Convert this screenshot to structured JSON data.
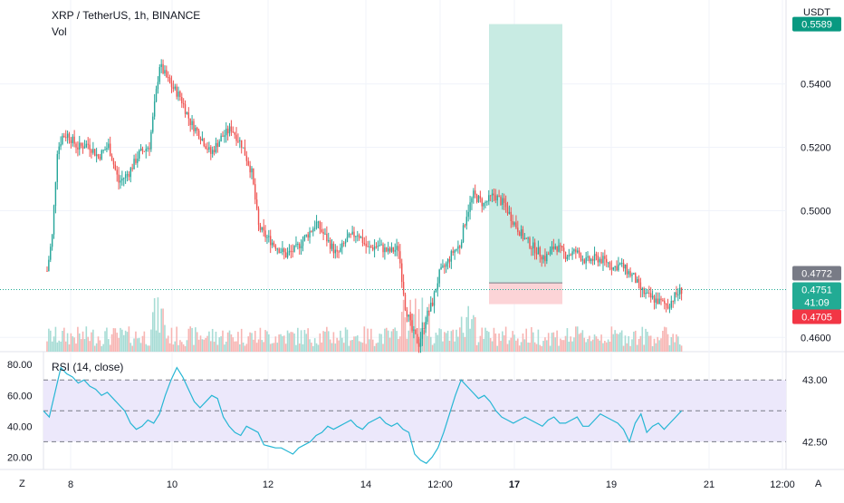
{
  "header": {
    "symbol_line": "XRP / TetherUS, 1h, BINANCE",
    "vol_label": "Vol",
    "currency": "USDT"
  },
  "rsi_label": "RSI (14, close)",
  "buttons": {
    "zoom": "Z",
    "auto": "A"
  },
  "colors": {
    "up": "#26a69a",
    "down": "#ef5350",
    "rsi": "#26b6d4",
    "profit_zone": "#c8ebe3",
    "loss_zone": "#fcd4d7",
    "rsi_band": "#ece8fb"
  },
  "chart_data": [
    {
      "type": "candlestick",
      "title": "XRP / TetherUS, 1h, BINANCE",
      "ylabel": "USDT",
      "y_ticks": [
        "0.5400",
        "0.5200",
        "0.5000",
        "0.4600"
      ],
      "x_ticks": [
        "8",
        "10",
        "12",
        "14",
        "12:00",
        "17",
        "19",
        "21",
        "12:00"
      ],
      "ylim": [
        0.4555,
        0.5665
      ],
      "price_labels": [
        {
          "value": 0.5589,
          "text": "0.5589",
          "color": "#089981"
        },
        {
          "value": 0.4772,
          "text": "0.4772",
          "color": "#787b86"
        },
        {
          "value": 0.4751,
          "text": "0.4751",
          "sub": "41:09",
          "color": "#22ab94"
        },
        {
          "value": 0.4705,
          "text": "0.4705",
          "color": "#f23645"
        }
      ],
      "long_position": {
        "entry": 0.4772,
        "target": 0.5589,
        "stop": 0.4705
      },
      "current_price": 0.4751,
      "close_path": [
        [
          0,
          0.481
        ],
        [
          3,
          0.492
        ],
        [
          6,
          0.519
        ],
        [
          9,
          0.5235
        ],
        [
          12,
          0.524
        ],
        [
          18,
          0.52
        ],
        [
          24,
          0.521
        ],
        [
          30,
          0.517
        ],
        [
          36,
          0.5205
        ],
        [
          42,
          0.509
        ],
        [
          48,
          0.512
        ],
        [
          54,
          0.518
        ],
        [
          60,
          0.5205
        ],
        [
          66,
          0.546
        ],
        [
          72,
          0.54
        ],
        [
          78,
          0.536
        ],
        [
          84,
          0.528
        ],
        [
          90,
          0.5235
        ],
        [
          96,
          0.518
        ],
        [
          102,
          0.523
        ],
        [
          108,
          0.526
        ],
        [
          114,
          0.521
        ],
        [
          120,
          0.512
        ],
        [
          124,
          0.495
        ],
        [
          128,
          0.492
        ],
        [
          134,
          0.489
        ],
        [
          140,
          0.486
        ],
        [
          146,
          0.488
        ],
        [
          152,
          0.492
        ],
        [
          158,
          0.496
        ],
        [
          164,
          0.491
        ],
        [
          170,
          0.486
        ],
        [
          176,
          0.491
        ],
        [
          182,
          0.493
        ],
        [
          188,
          0.488
        ],
        [
          194,
          0.489
        ],
        [
          200,
          0.487
        ],
        [
          206,
          0.488
        ],
        [
          210,
          0.47
        ],
        [
          214,
          0.462
        ],
        [
          218,
          0.458
        ],
        [
          222,
          0.466
        ],
        [
          226,
          0.471
        ],
        [
          230,
          0.48
        ],
        [
          234,
          0.483
        ],
        [
          238,
          0.487
        ],
        [
          242,
          0.489
        ],
        [
          246,
          0.499
        ],
        [
          250,
          0.505
        ],
        [
          256,
          0.502
        ],
        [
          262,
          0.505
        ],
        [
          268,
          0.502
        ],
        [
          274,
          0.496
        ],
        [
          280,
          0.491
        ],
        [
          286,
          0.488
        ],
        [
          292,
          0.485
        ],
        [
          298,
          0.489
        ],
        [
          304,
          0.486
        ],
        [
          310,
          0.487
        ],
        [
          316,
          0.484
        ],
        [
          322,
          0.485
        ],
        [
          328,
          0.484
        ],
        [
          332,
          0.482
        ],
        [
          336,
          0.483
        ],
        [
          340,
          0.481
        ],
        [
          344,
          0.479
        ],
        [
          348,
          0.475
        ],
        [
          352,
          0.473
        ],
        [
          356,
          0.472
        ],
        [
          360,
          0.471
        ],
        [
          364,
          0.47
        ],
        [
          368,
          0.473
        ],
        [
          372,
          0.475
        ]
      ]
    },
    {
      "type": "line",
      "title": "RSI (14, close)",
      "y_ticks": [
        80.0,
        60.0,
        40.0,
        20.0
      ],
      "y_tick_labels": [
        "80.00",
        "60.00",
        "40.00",
        "20.00"
      ],
      "right_ticks": [
        "43.00",
        "42.50"
      ],
      "bands": [
        30,
        50,
        70
      ],
      "ylim": [
        12,
        86
      ],
      "values": [
        50,
        46,
        62,
        78,
        74,
        72,
        68,
        70,
        66,
        64,
        60,
        62,
        58,
        54,
        50,
        42,
        38,
        40,
        44,
        42,
        48,
        60,
        70,
        78,
        72,
        64,
        56,
        52,
        56,
        60,
        58,
        46,
        40,
        36,
        34,
        40,
        38,
        36,
        28,
        27,
        26,
        26,
        24,
        22,
        26,
        28,
        30,
        34,
        36,
        40,
        38,
        40,
        42,
        44,
        40,
        38,
        42,
        44,
        46,
        42,
        40,
        42,
        38,
        36,
        22,
        18,
        16,
        20,
        26,
        36,
        48,
        60,
        70,
        66,
        62,
        58,
        60,
        56,
        50,
        46,
        44,
        42,
        44,
        46,
        44,
        42,
        40,
        44,
        46,
        42,
        42,
        44,
        46,
        40,
        40,
        44,
        48,
        46,
        44,
        42,
        38,
        30,
        42,
        48,
        36,
        40,
        42,
        38,
        42,
        46,
        50
      ]
    }
  ]
}
